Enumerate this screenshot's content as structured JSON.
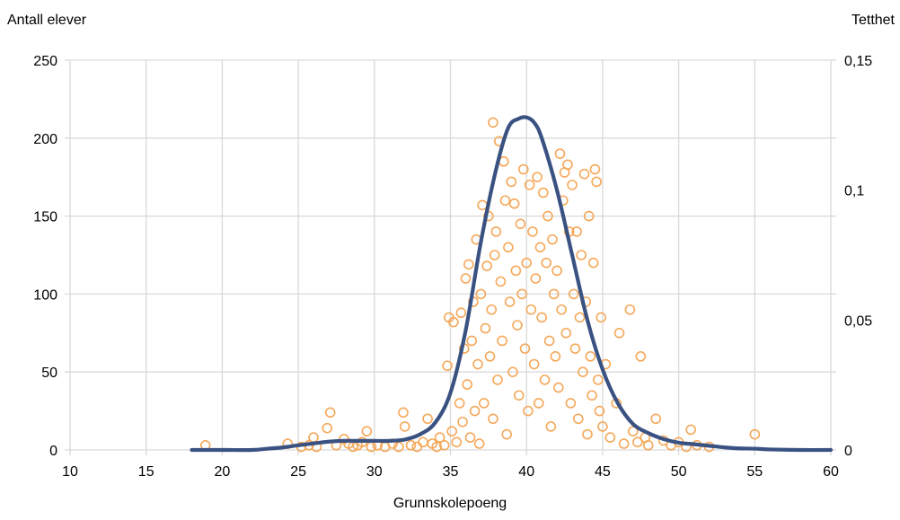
{
  "chart_data": {
    "type": "scatter",
    "title": "",
    "xlabel": "Grunnskolepoeng",
    "ylabel_left": "Antall elever",
    "ylabel_right": "Tetthet",
    "xlim": [
      10,
      60
    ],
    "ylim_left": [
      0,
      250
    ],
    "ylim_right": [
      0,
      0.15
    ],
    "x_ticks": [
      "10",
      "15",
      "20",
      "25",
      "30",
      "35",
      "40",
      "45",
      "50",
      "55",
      "60"
    ],
    "y_left_ticks": [
      "0",
      "50",
      "100",
      "150",
      "200",
      "250"
    ],
    "y_right_ticks": [
      "0",
      "0,05",
      "0,1",
      "0,15"
    ],
    "grid": true,
    "legend": "none",
    "colors": {
      "scatter": "#F5A85A",
      "density": "#3A5282",
      "grid": "#D9D9D9"
    },
    "series": [
      {
        "type": "scatter",
        "axis": "left",
        "points": [
          [
            18.9,
            3
          ],
          [
            24.3,
            4
          ],
          [
            25.2,
            2
          ],
          [
            25.7,
            3
          ],
          [
            26,
            8
          ],
          [
            26.2,
            2
          ],
          [
            26.9,
            14
          ],
          [
            27.1,
            24
          ],
          [
            27.5,
            3
          ],
          [
            28,
            7
          ],
          [
            28.3,
            4
          ],
          [
            28.6,
            2
          ],
          [
            28.9,
            3
          ],
          [
            29.2,
            5
          ],
          [
            29.5,
            12
          ],
          [
            29.8,
            2
          ],
          [
            30.2,
            3
          ],
          [
            30.7,
            2
          ],
          [
            31.2,
            4
          ],
          [
            31.6,
            2
          ],
          [
            31.9,
            24
          ],
          [
            32,
            15
          ],
          [
            32.4,
            3
          ],
          [
            32.8,
            2
          ],
          [
            33.2,
            5
          ],
          [
            33.5,
            20
          ],
          [
            33.8,
            4
          ],
          [
            34.1,
            2
          ],
          [
            34.3,
            8
          ],
          [
            34.6,
            3
          ],
          [
            34.8,
            54
          ],
          [
            34.9,
            85
          ],
          [
            35.1,
            12
          ],
          [
            35.2,
            82
          ],
          [
            35.4,
            5
          ],
          [
            35.6,
            30
          ],
          [
            35.7,
            88
          ],
          [
            35.8,
            18
          ],
          [
            35.9,
            65
          ],
          [
            36,
            110
          ],
          [
            36.1,
            42
          ],
          [
            36.2,
            119
          ],
          [
            36.3,
            8
          ],
          [
            36.4,
            70
          ],
          [
            36.5,
            95
          ],
          [
            36.6,
            25
          ],
          [
            36.7,
            135
          ],
          [
            36.8,
            55
          ],
          [
            36.9,
            4
          ],
          [
            37,
            100
          ],
          [
            37.1,
            157
          ],
          [
            37.2,
            30
          ],
          [
            37.3,
            78
          ],
          [
            37.4,
            118
          ],
          [
            37.5,
            150
          ],
          [
            37.6,
            60
          ],
          [
            37.7,
            90
          ],
          [
            37.8,
            20
          ],
          [
            37.8,
            210
          ],
          [
            37.9,
            125
          ],
          [
            38,
            140
          ],
          [
            38.1,
            45
          ],
          [
            38.2,
            198
          ],
          [
            38.3,
            108
          ],
          [
            38.4,
            70
          ],
          [
            38.5,
            185
          ],
          [
            38.6,
            160
          ],
          [
            38.7,
            10
          ],
          [
            38.8,
            130
          ],
          [
            38.9,
            95
          ],
          [
            39,
            172
          ],
          [
            39.1,
            50
          ],
          [
            39.2,
            158
          ],
          [
            39.3,
            115
          ],
          [
            39.4,
            80
          ],
          [
            39.5,
            35
          ],
          [
            39.6,
            145
          ],
          [
            39.7,
            100
          ],
          [
            39.8,
            180
          ],
          [
            39.9,
            65
          ],
          [
            40,
            120
          ],
          [
            40.1,
            25
          ],
          [
            40.2,
            170
          ],
          [
            40.3,
            90
          ],
          [
            40.4,
            140
          ],
          [
            40.5,
            55
          ],
          [
            40.6,
            110
          ],
          [
            40.7,
            175
          ],
          [
            40.8,
            30
          ],
          [
            40.9,
            130
          ],
          [
            41,
            85
          ],
          [
            41.1,
            165
          ],
          [
            41.2,
            45
          ],
          [
            41.3,
            120
          ],
          [
            41.4,
            150
          ],
          [
            41.5,
            70
          ],
          [
            41.6,
            15
          ],
          [
            41.7,
            135
          ],
          [
            41.8,
            100
          ],
          [
            41.9,
            60
          ],
          [
            42,
            115
          ],
          [
            42.1,
            40
          ],
          [
            42.2,
            190
          ],
          [
            42.3,
            90
          ],
          [
            42.4,
            160
          ],
          [
            42.5,
            178
          ],
          [
            42.6,
            75
          ],
          [
            42.7,
            183
          ],
          [
            42.8,
            140
          ],
          [
            42.9,
            30
          ],
          [
            43,
            170
          ],
          [
            43.1,
            100
          ],
          [
            43.2,
            65
          ],
          [
            43.3,
            140
          ],
          [
            43.4,
            20
          ],
          [
            43.5,
            85
          ],
          [
            43.6,
            125
          ],
          [
            43.7,
            50
          ],
          [
            43.8,
            177
          ],
          [
            43.9,
            95
          ],
          [
            44,
            10
          ],
          [
            44.1,
            150
          ],
          [
            44.2,
            60
          ],
          [
            44.3,
            35
          ],
          [
            44.4,
            120
          ],
          [
            44.5,
            180
          ],
          [
            44.6,
            172
          ],
          [
            44.7,
            45
          ],
          [
            44.8,
            25
          ],
          [
            44.9,
            85
          ],
          [
            45,
            15
          ],
          [
            45.2,
            55
          ],
          [
            45.5,
            8
          ],
          [
            45.9,
            30
          ],
          [
            46.1,
            75
          ],
          [
            46.4,
            4
          ],
          [
            46.8,
            90
          ],
          [
            47,
            12
          ],
          [
            47.3,
            5
          ],
          [
            47.5,
            60
          ],
          [
            47.8,
            8
          ],
          [
            48,
            3
          ],
          [
            48.5,
            20
          ],
          [
            49,
            6
          ],
          [
            49.5,
            3
          ],
          [
            50,
            5
          ],
          [
            50.5,
            2
          ],
          [
            50.8,
            13
          ],
          [
            51.2,
            3
          ],
          [
            52,
            2
          ],
          [
            55,
            10
          ]
        ]
      },
      {
        "type": "line",
        "axis": "right",
        "points": [
          [
            18,
            0
          ],
          [
            20,
            0
          ],
          [
            22,
            0
          ],
          [
            23,
            0.0005
          ],
          [
            24,
            0.001
          ],
          [
            25,
            0.0018
          ],
          [
            26,
            0.0025
          ],
          [
            27,
            0.0032
          ],
          [
            28,
            0.0035
          ],
          [
            29,
            0.0035
          ],
          [
            30,
            0.0035
          ],
          [
            31,
            0.0035
          ],
          [
            32,
            0.004
          ],
          [
            33,
            0.006
          ],
          [
            34,
            0.0105
          ],
          [
            35,
            0.022
          ],
          [
            36,
            0.046
          ],
          [
            37,
            0.08
          ],
          [
            38,
            0.108
          ],
          [
            38.8,
            0.124
          ],
          [
            39.5,
            0.1275
          ],
          [
            40,
            0.128
          ],
          [
            40.5,
            0.126
          ],
          [
            41,
            0.12
          ],
          [
            42,
            0.1
          ],
          [
            43,
            0.075
          ],
          [
            44,
            0.05
          ],
          [
            45,
            0.031
          ],
          [
            46,
            0.018
          ],
          [
            47,
            0.01
          ],
          [
            48,
            0.0065
          ],
          [
            49,
            0.0042
          ],
          [
            50,
            0.0028
          ],
          [
            51,
            0.0022
          ],
          [
            52,
            0.0016
          ],
          [
            53,
            0.001
          ],
          [
            54,
            0.0006
          ],
          [
            55,
            0.0005
          ],
          [
            56,
            0.0002
          ],
          [
            58,
            0
          ],
          [
            60,
            0
          ]
        ]
      }
    ]
  }
}
